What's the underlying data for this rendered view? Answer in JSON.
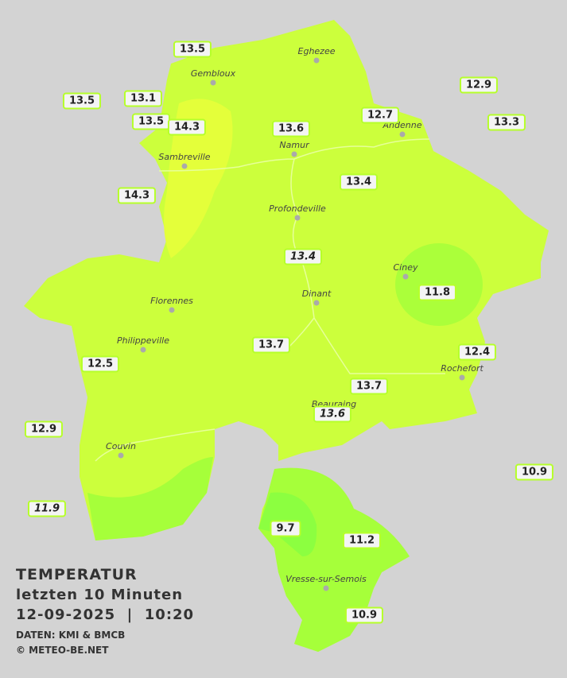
{
  "map": {
    "cities": [
      "Eghezee",
      "Gembloux",
      "Andenne",
      "Namur",
      "Sambreville",
      "Profondeville",
      "Ciney",
      "Dinant",
      "Florennes",
      "Philippeville",
      "Rochefort",
      "Beauraing",
      "Couvin",
      "Vresse-sur-Semois"
    ],
    "stations": [
      {
        "value": 13.5
      },
      {
        "value": 13.1
      },
      {
        "value": 13.5
      },
      {
        "value": 13.5
      },
      {
        "value": 14.3
      },
      {
        "value": 13.6
      },
      {
        "value": 12.7
      },
      {
        "value": 12.9
      },
      {
        "value": 13.3
      },
      {
        "value": 14.3
      },
      {
        "value": 13.4
      },
      {
        "value": 13.4,
        "italic": true
      },
      {
        "value": 11.8
      },
      {
        "value": 13.7
      },
      {
        "value": 12.5
      },
      {
        "value": 12.4
      },
      {
        "value": 13.7
      },
      {
        "value": 13.6,
        "italic": true
      },
      {
        "value": 12.9
      },
      {
        "value": 10.9
      },
      {
        "value": 11.9,
        "italic": true
      },
      {
        "value": 9.7
      },
      {
        "value": 11.2
      },
      {
        "value": 10.9
      }
    ]
  },
  "caption": {
    "title": "TEMPERATUR",
    "subtitle": "letzten 10 Minuten",
    "datetime": "12-09-2025  |  10:20",
    "source": "DATEN: KMI & BMCB",
    "copyright": "© METEO-BE.NET"
  }
}
